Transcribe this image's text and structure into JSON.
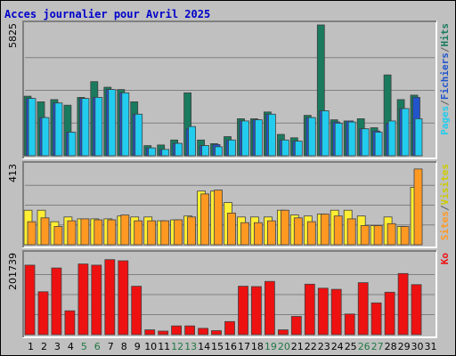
{
  "title": "Acces journalier pour Avril 2025",
  "chart_data": {
    "type": "bar",
    "categories": [
      "1",
      "2",
      "3",
      "4",
      "5",
      "6",
      "7",
      "8",
      "9",
      "10",
      "11",
      "12",
      "13",
      "14",
      "15",
      "16",
      "17",
      "18",
      "19",
      "20",
      "21",
      "22",
      "23",
      "24",
      "25",
      "26",
      "27",
      "28",
      "29",
      "30",
      "31"
    ],
    "weekend_days": [
      "5",
      "6",
      "12",
      "13",
      "19",
      "20",
      "26",
      "27"
    ],
    "panels": [
      {
        "id": "top",
        "max_label": "5825",
        "ymax": 5825,
        "legend": [
          "Pages",
          "/",
          "Fichiers",
          "/",
          "Hits"
        ],
        "series": [
          {
            "name": "Hits",
            "color": "#1a7a5e",
            "values": [
              2650,
              2400,
              2500,
              2250,
              2600,
              3300,
              3050,
              2950,
              2400,
              450,
              480,
              700,
              2800,
              700,
              540,
              850,
              1650,
              1650,
              1950,
              950,
              800,
              1800,
              5825,
              1600,
              1550,
              1650,
              1250,
              3600,
              2500,
              2700,
              null
            ]
          },
          {
            "name": "Fichiers",
            "color": "#2255cc",
            "values": [
              2550,
              1700,
              2350,
              1050,
              2550,
              2600,
              2950,
              2800,
              1850,
              350,
              280,
              550,
              1200,
              450,
              500,
              700,
              1550,
              1600,
              1850,
              700,
              650,
              1700,
              2000,
              1500,
              1550,
              1200,
              1100,
              1450,
              2100,
              2600,
              null
            ]
          },
          {
            "name": "Pages",
            "color": "#22ccee",
            "values": [
              2550,
              1700,
              2350,
              1050,
              2550,
              2600,
              2950,
              2800,
              1850,
              350,
              280,
              550,
              1300,
              450,
              400,
              700,
              1550,
              1600,
              1850,
              700,
              650,
              1700,
              2000,
              1450,
              1500,
              1200,
              1050,
              1550,
              2100,
              1650,
              null
            ]
          }
        ]
      },
      {
        "id": "middle",
        "max_label": "413",
        "ymax": 413,
        "legend": [
          "Sites",
          "/",
          "Visites"
        ],
        "series": [
          {
            "name": "Visites",
            "color": "#ffee33",
            "values": [
              180,
              180,
              120,
              145,
              135,
              135,
              135,
              150,
              145,
              145,
              125,
              130,
              150,
              280,
              280,
              220,
              145,
              145,
              145,
              180,
              155,
              150,
              160,
              180,
              180,
              150,
              100,
              145,
              95,
              300,
              null
            ]
          },
          {
            "name": "Sites",
            "color": "#ff9922",
            "values": [
              120,
              140,
              95,
              125,
              135,
              130,
              130,
              155,
              125,
              125,
              125,
              130,
              145,
              265,
              285,
              165,
              115,
              115,
              125,
              180,
              140,
              120,
              160,
              150,
              135,
              100,
              100,
              110,
              95,
              395,
              null
            ]
          }
        ]
      },
      {
        "id": "bottom",
        "max_label": "201739",
        "ymax": 201739,
        "legend": [
          "Ko"
        ],
        "series": [
          {
            "name": "Ko",
            "color": "#ee1111",
            "values": [
              175000,
              108000,
              168000,
              60000,
              178000,
              175000,
              189000,
              186000,
              122000,
              12000,
              9000,
              22000,
              22000,
              16000,
              10000,
              33000,
              122000,
              121000,
              134000,
              12000,
              46000,
              127000,
              117000,
              114000,
              52000,
              131000,
              80000,
              107000,
              154000,
              126000,
              null
            ]
          }
        ]
      }
    ]
  }
}
